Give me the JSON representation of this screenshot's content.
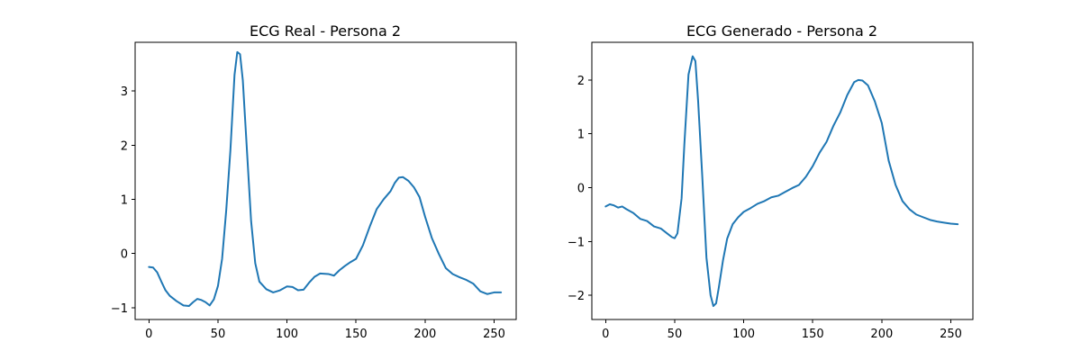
{
  "figure": {
    "background": "#ffffff"
  },
  "chart_data": [
    {
      "type": "line",
      "title": "ECG Real - Persona 2",
      "xlabel": "",
      "ylabel": "",
      "xlim": [
        -10,
        266
      ],
      "ylim": [
        -1.22,
        3.9
      ],
      "xticks": [
        0,
        50,
        100,
        150,
        200,
        250
      ],
      "yticks": [
        -1,
        0,
        1,
        2,
        3
      ],
      "grid": false,
      "color": "#1f77b4",
      "series": [
        {
          "x": [
            0,
            3,
            6,
            9,
            12,
            15,
            20,
            25,
            29,
            32,
            35,
            38,
            41,
            44,
            47,
            50,
            53,
            56,
            59,
            62,
            64,
            66,
            68,
            71,
            74,
            77,
            80,
            85,
            90,
            95,
            100,
            104,
            108,
            112,
            116,
            120,
            124,
            130,
            134,
            138,
            142,
            146,
            150,
            155,
            160,
            165,
            170,
            175,
            178,
            181,
            184,
            188,
            192,
            196,
            200,
            205,
            210,
            215,
            220,
            225,
            230,
            235,
            240,
            245,
            250,
            255
          ],
          "y": [
            -0.25,
            -0.26,
            -0.35,
            -0.52,
            -0.68,
            -0.78,
            -0.88,
            -0.96,
            -0.97,
            -0.9,
            -0.84,
            -0.86,
            -0.9,
            -0.96,
            -0.85,
            -0.6,
            -0.1,
            0.8,
            1.9,
            3.3,
            3.72,
            3.68,
            3.2,
            1.9,
            0.6,
            -0.18,
            -0.52,
            -0.66,
            -0.72,
            -0.68,
            -0.61,
            -0.62,
            -0.68,
            -0.67,
            -0.54,
            -0.43,
            -0.37,
            -0.38,
            -0.41,
            -0.31,
            -0.23,
            -0.16,
            -0.1,
            0.15,
            0.5,
            0.82,
            1.0,
            1.15,
            1.3,
            1.4,
            1.41,
            1.34,
            1.22,
            1.04,
            0.68,
            0.28,
            -0.01,
            -0.27,
            -0.38,
            -0.44,
            -0.49,
            -0.56,
            -0.7,
            -0.75,
            -0.72,
            -0.72
          ]
        }
      ]
    },
    {
      "type": "line",
      "title": "ECG Generado - Persona 2",
      "xlabel": "",
      "ylabel": "",
      "xlim": [
        -10,
        266
      ],
      "ylim": [
        -2.45,
        2.7
      ],
      "xticks": [
        0,
        50,
        100,
        150,
        200,
        250
      ],
      "yticks": [
        -2,
        -1,
        0,
        1,
        2
      ],
      "grid": false,
      "color": "#1f77b4",
      "series": [
        {
          "x": [
            0,
            3,
            6,
            9,
            12,
            15,
            20,
            25,
            30,
            35,
            40,
            45,
            48,
            50,
            52,
            55,
            57,
            60,
            63,
            65,
            67,
            70,
            73,
            76,
            78,
            80,
            82,
            85,
            88,
            92,
            96,
            100,
            105,
            110,
            115,
            120,
            125,
            130,
            135,
            140,
            145,
            150,
            155,
            160,
            165,
            170,
            175,
            180,
            183,
            186,
            190,
            195,
            200,
            205,
            210,
            215,
            220,
            225,
            230,
            235,
            240,
            245,
            250,
            255
          ],
          "y": [
            -0.35,
            -0.31,
            -0.33,
            -0.37,
            -0.35,
            -0.4,
            -0.47,
            -0.58,
            -0.62,
            -0.72,
            -0.76,
            -0.86,
            -0.92,
            -0.94,
            -0.85,
            -0.2,
            0.8,
            2.1,
            2.44,
            2.35,
            1.6,
            0.2,
            -1.3,
            -2.0,
            -2.2,
            -2.15,
            -1.85,
            -1.35,
            -0.95,
            -0.68,
            -0.55,
            -0.45,
            -0.38,
            -0.3,
            -0.25,
            -0.18,
            -0.15,
            -0.08,
            -0.01,
            0.05,
            0.2,
            0.4,
            0.65,
            0.85,
            1.15,
            1.4,
            1.72,
            1.96,
            2.0,
            1.99,
            1.9,
            1.6,
            1.2,
            0.5,
            0.05,
            -0.25,
            -0.4,
            -0.5,
            -0.55,
            -0.6,
            -0.63,
            -0.65,
            -0.67,
            -0.68
          ]
        }
      ]
    }
  ]
}
